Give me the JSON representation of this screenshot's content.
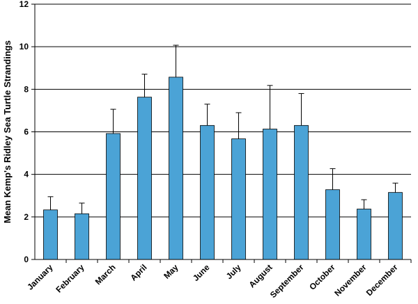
{
  "chart_data": {
    "type": "bar",
    "title": "",
    "xlabel": "",
    "ylabel": "Mean Kemp's Ridley Sea Turtle Strandings",
    "ylim": [
      0,
      12
    ],
    "yticks": [
      0,
      2,
      4,
      6,
      8,
      10,
      12
    ],
    "grid": true,
    "categories": [
      "January",
      "February",
      "March",
      "April",
      "May",
      "June",
      "July",
      "August",
      "September",
      "October",
      "November",
      "December"
    ],
    "values": [
      2.33,
      2.15,
      5.92,
      7.63,
      8.57,
      6.3,
      5.67,
      6.13,
      6.3,
      3.28,
      2.37,
      3.15
    ],
    "error_upper": [
      0.62,
      0.5,
      1.14,
      1.08,
      1.5,
      1.0,
      1.23,
      2.05,
      1.5,
      0.99,
      0.44,
      0.44
    ],
    "colors": {
      "bar": "#4ba3d6",
      "bar_edge": "#000000",
      "grid": "#000000",
      "axis": "#000000"
    }
  }
}
